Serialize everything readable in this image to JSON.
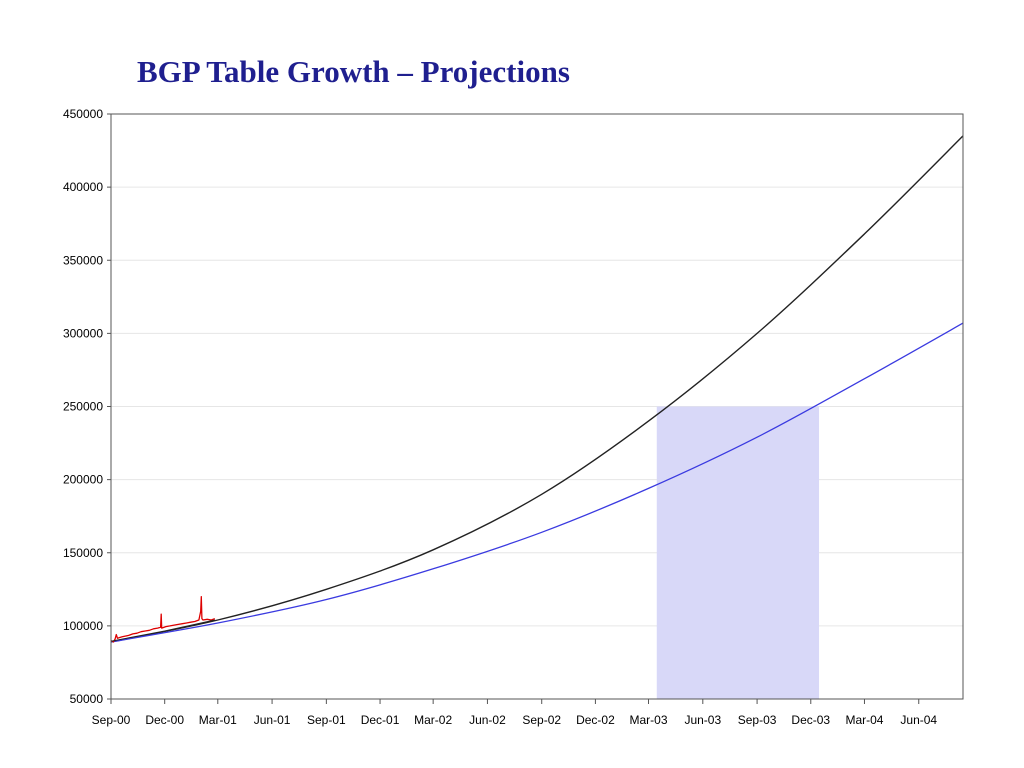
{
  "title": "BGP Table Growth – Projections",
  "colors": {
    "title": "#1f1f8f",
    "actual": "#dd0000",
    "actual_trend": "#222222",
    "projection_high": "#222222",
    "projection_low": "#3a3ae0",
    "highlight": "#d8d8f8",
    "grid": "#e6e6e6",
    "axis": "#555555"
  },
  "chart_data": {
    "type": "line",
    "title": "BGP Table Growth – Projections",
    "xlabel": "",
    "ylabel": "",
    "ylim": [
      50000,
      450000
    ],
    "yticks": [
      50000,
      100000,
      150000,
      200000,
      250000,
      300000,
      350000,
      400000,
      450000
    ],
    "xlim": [
      "2000-09-01",
      "2004-08-15"
    ],
    "xticks": [
      "Sep-00",
      "Dec-00",
      "Mar-01",
      "Jun-01",
      "Sep-01",
      "Dec-01",
      "Mar-02",
      "Jun-02",
      "Sep-02",
      "Dec-02",
      "Mar-03",
      "Jun-03",
      "Sep-03",
      "Dec-03",
      "Mar-04",
      "Jun-04"
    ],
    "grid": true,
    "legend": "none",
    "shaded_region": {
      "x": [
        "2003-03-15",
        "2003-12-15"
      ],
      "y": [
        50000,
        250000
      ]
    },
    "series": [
      {
        "kind": "projection-high",
        "x": [
          "2000-09-01",
          "2001-03-01",
          "2001-09-01",
          "2002-03-01",
          "2002-09-01",
          "2003-03-01",
          "2003-09-01",
          "2004-03-01",
          "2004-08-15"
        ],
        "values": [
          89000,
          104000,
          125000,
          152000,
          190000,
          240000,
          300000,
          368000,
          435000
        ]
      },
      {
        "kind": "projection-low",
        "x": [
          "2000-09-01",
          "2001-03-01",
          "2001-09-01",
          "2002-03-01",
          "2002-09-01",
          "2003-03-01",
          "2003-09-01",
          "2004-03-01",
          "2004-08-15"
        ],
        "values": [
          89000,
          102000,
          118000,
          139000,
          164000,
          194000,
          229000,
          269000,
          307000
        ]
      },
      {
        "kind": "actual",
        "x": [
          "2000-09-01",
          "2000-09-05",
          "2000-09-08",
          "2000-09-10",
          "2000-09-12",
          "2000-09-15",
          "2000-09-20",
          "2000-09-25",
          "2000-10-01",
          "2000-10-08",
          "2000-10-15",
          "2000-10-22",
          "2000-10-29",
          "2000-11-05",
          "2000-11-12",
          "2000-11-19",
          "2000-11-24",
          "2000-11-25",
          "2000-11-26",
          "2000-12-03",
          "2000-12-10",
          "2000-12-17",
          "2000-12-24",
          "2000-12-31",
          "2001-01-07",
          "2001-01-14",
          "2001-01-21",
          "2001-01-28",
          "2001-01-31",
          "2001-02-01",
          "2001-02-02",
          "2001-02-04",
          "2001-02-11",
          "2001-02-18",
          "2001-02-24"
        ],
        "values": [
          90000,
          89000,
          91000,
          94000,
          91500,
          92000,
          92500,
          93000,
          93500,
          94500,
          95000,
          96000,
          96500,
          97000,
          98000,
          98500,
          99000,
          108000,
          98500,
          99500,
          100000,
          100500,
          101000,
          101500,
          102000,
          102500,
          103000,
          104000,
          110000,
          120000,
          105000,
          104000,
          104500,
          104000,
          105000
        ]
      },
      {
        "kind": "actual-trend",
        "x": [
          "2000-09-01",
          "2000-12-01",
          "2001-02-24"
        ],
        "values": [
          89500,
          96500,
          104000
        ]
      }
    ]
  }
}
